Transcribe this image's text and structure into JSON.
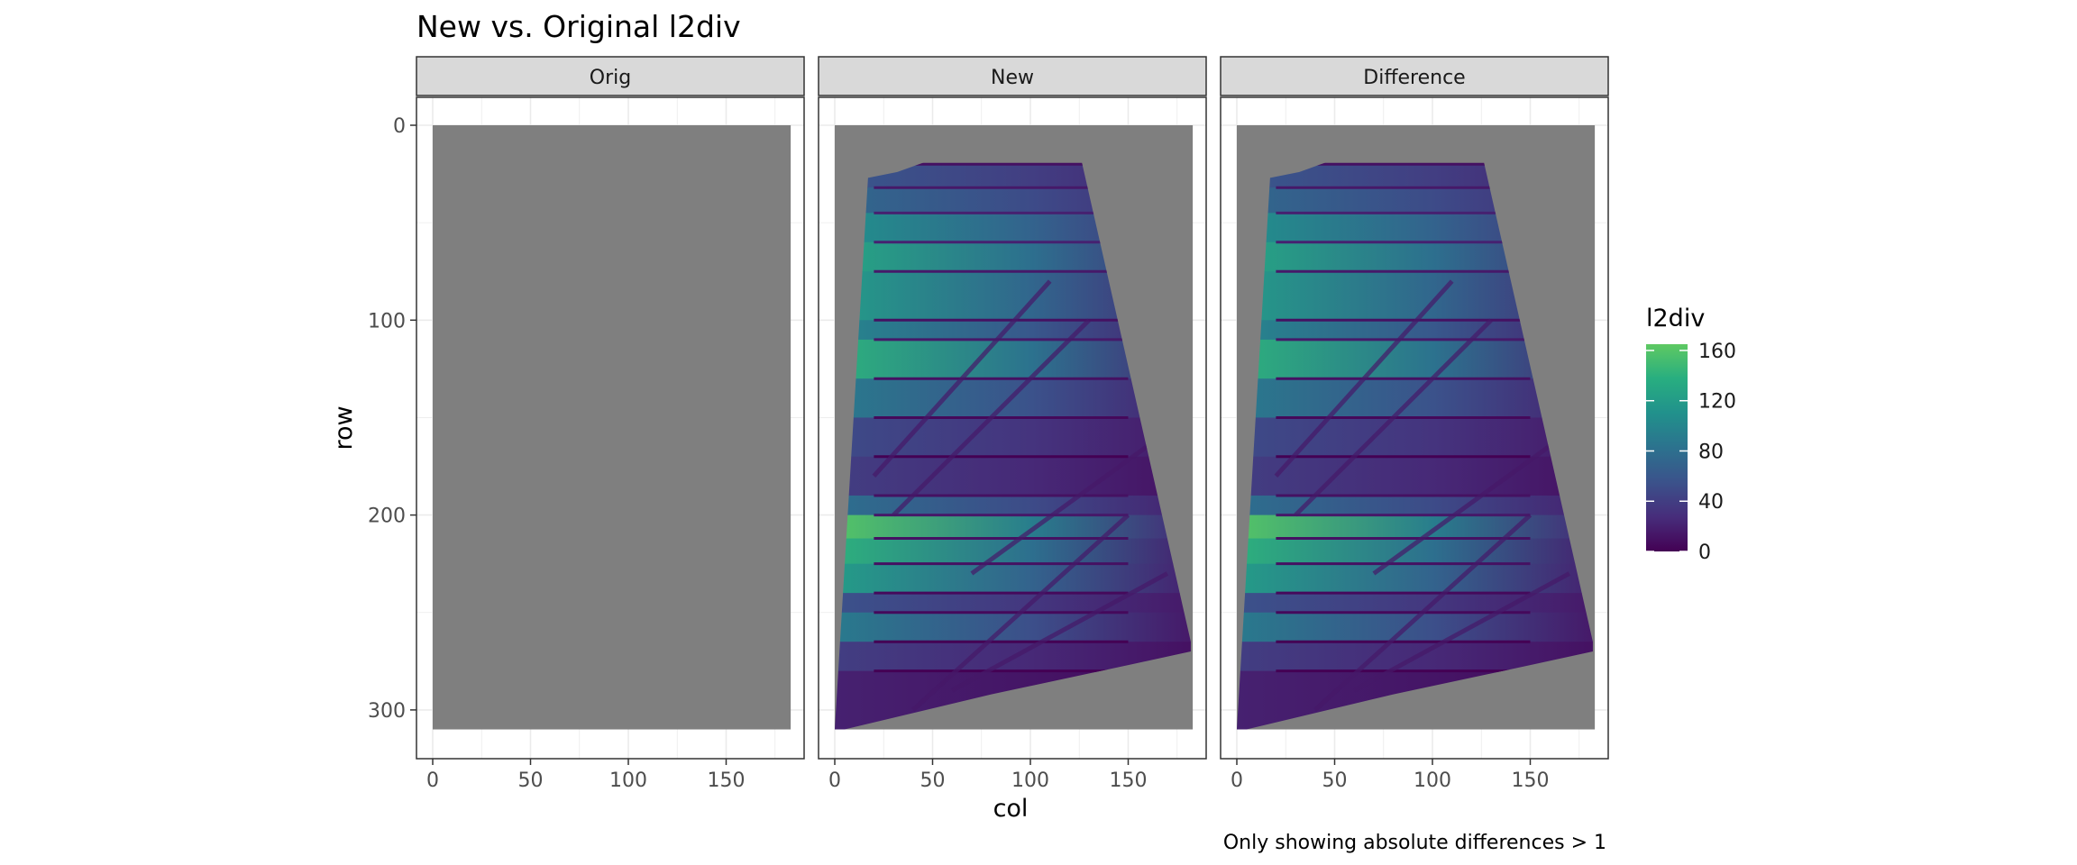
{
  "chart_data": {
    "type": "heatmap",
    "title": "New vs. Original l2div",
    "caption": "Only showing absolute differences > 1",
    "xlabel": "col",
    "ylabel": "row",
    "facets": [
      "Orig",
      "New",
      "Difference"
    ],
    "xlim": [
      0,
      183
    ],
    "ylim": [
      310,
      0
    ],
    "x_ticks": [
      0,
      50,
      100,
      150
    ],
    "y_ticks": [
      0,
      100,
      200,
      300
    ],
    "grid": true,
    "missing_color": "#7f7f7f",
    "legend": {
      "title": "l2div",
      "placement": "right",
      "ticks": [
        0,
        40,
        80,
        120,
        160
      ],
      "range": [
        0,
        165
      ],
      "palette": [
        "#440154",
        "#472d7b",
        "#3b528b",
        "#2c728e",
        "#21918c",
        "#28ae80",
        "#5ec962"
      ]
    },
    "data_region": {
      "description_free": true,
      "outline_points": [
        [
          0,
          310
        ],
        [
          17,
          27
        ],
        [
          32,
          24
        ],
        [
          98,
          0
        ],
        [
          122,
          0
        ],
        [
          182,
          265
        ],
        [
          182,
          270
        ],
        [
          150,
          277
        ],
        [
          80,
          292
        ],
        [
          5,
          310
        ]
      ]
    },
    "bands": [
      {
        "row_start": 20,
        "row_end": 32,
        "value_left": 60,
        "value_right": 20
      },
      {
        "row_start": 32,
        "row_end": 45,
        "value_left": 75,
        "value_right": 25
      },
      {
        "row_start": 45,
        "row_end": 60,
        "value_left": 110,
        "value_right": 30
      },
      {
        "row_start": 60,
        "row_end": 75,
        "value_left": 130,
        "value_right": 30
      },
      {
        "row_start": 75,
        "row_end": 100,
        "value_left": 120,
        "value_right": 25
      },
      {
        "row_start": 100,
        "row_end": 110,
        "value_left": 100,
        "value_right": 20
      },
      {
        "row_start": 110,
        "row_end": 130,
        "value_left": 140,
        "value_right": 25
      },
      {
        "row_start": 130,
        "row_end": 150,
        "value_left": 90,
        "value_right": 20
      },
      {
        "row_start": 150,
        "row_end": 170,
        "value_left": 50,
        "value_right": 15
      },
      {
        "row_start": 170,
        "row_end": 190,
        "value_left": 40,
        "value_right": 10
      },
      {
        "row_start": 190,
        "row_end": 200,
        "value_left": 80,
        "value_right": 20
      },
      {
        "row_start": 200,
        "row_end": 212,
        "value_left": 160,
        "value_right": 25
      },
      {
        "row_start": 212,
        "row_end": 225,
        "value_left": 140,
        "value_right": 20
      },
      {
        "row_start": 225,
        "row_end": 240,
        "value_left": 120,
        "value_right": 20
      },
      {
        "row_start": 240,
        "row_end": 250,
        "value_left": 55,
        "value_right": 15
      },
      {
        "row_start": 250,
        "row_end": 265,
        "value_left": 90,
        "value_right": 15
      },
      {
        "row_start": 265,
        "row_end": 280,
        "value_left": 40,
        "value_right": 10
      },
      {
        "row_start": 280,
        "row_end": 310,
        "value_left": 20,
        "value_right": 5
      }
    ]
  }
}
